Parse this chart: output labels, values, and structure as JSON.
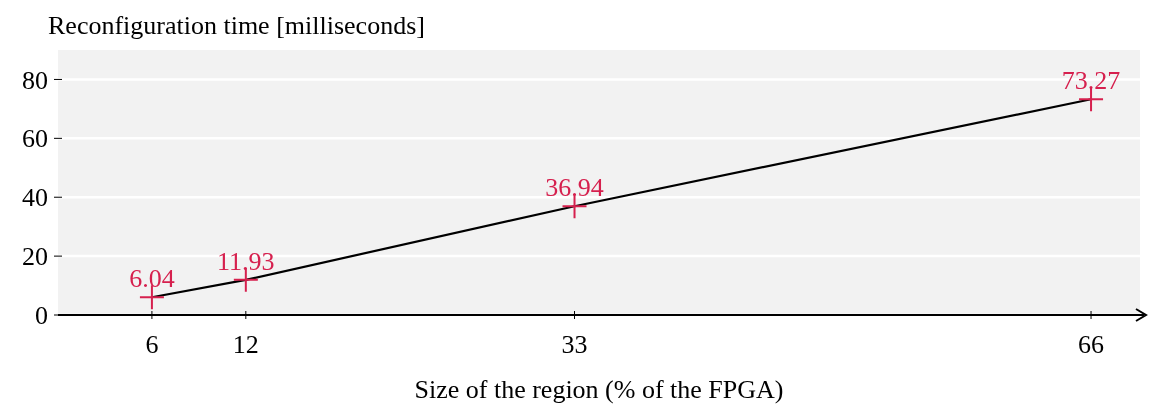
{
  "chart_data": {
    "type": "line",
    "ylabel": "Reconfiguration time [milliseconds]",
    "xlabel": "Size of the region (% of the FPGA)",
    "x": [
      6,
      12,
      33,
      66
    ],
    "series": [
      {
        "color": "#000000",
        "colors": [
          "#d6204e",
          "#d6204e",
          "#d6204e",
          "#d6204e"
        ],
        "values": [
          6.04,
          11.93,
          36.94,
          73.27
        ]
      }
    ],
    "xlim": [
      0,
      69
    ],
    "xticks": [
      6,
      12,
      33,
      66
    ],
    "ylim": [
      0,
      90
    ],
    "yticks": [
      0,
      20,
      40,
      60,
      80
    ],
    "grid": "y",
    "marker": "cross",
    "line_style": "solid",
    "data_labels": true
  }
}
